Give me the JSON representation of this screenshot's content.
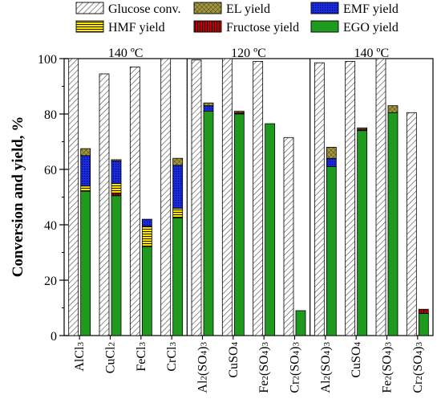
{
  "chart_data": {
    "type": "bar",
    "ylabel": "Conversion and yield, %",
    "ylim": [
      0,
      100
    ],
    "yticks": [
      0,
      20,
      40,
      60,
      80,
      100
    ],
    "legend": {
      "placement": "top",
      "items": [
        {
          "key": "conv",
          "label": "Glucose conv."
        },
        {
          "key": "el",
          "label": "EL yield"
        },
        {
          "key": "emf",
          "label": "EMF yield"
        },
        {
          "key": "hmf",
          "label": "HMF yield"
        },
        {
          "key": "fru",
          "label": "Fructose yield"
        },
        {
          "key": "ego",
          "label": "EGO yield"
        }
      ]
    },
    "series_colors": {
      "conv": "#ffffff",
      "el": "#a39840",
      "emf": "#1a2cd8",
      "hmf": "#ffe600",
      "fru": "#c00000",
      "ego": "#1f9a1f"
    },
    "panels": [
      {
        "title": "140 ºC",
        "categories": [
          {
            "label": "AlCl3",
            "base": "AlCl",
            "sub": "3",
            "sub2": "",
            "conv": 100,
            "ego": 52,
            "fru": 0,
            "hmf": 2,
            "emf": 11,
            "el": 2.5
          },
          {
            "label": "CuCl2",
            "base": "CuCl",
            "sub": "2",
            "sub2": "",
            "conv": 94.5,
            "ego": 50.5,
            "fru": 1,
            "hmf": 3.5,
            "emf": 8,
            "el": 0.5
          },
          {
            "label": "FeCl3",
            "base": "FeCl",
            "sub": "3",
            "sub2": "",
            "conv": 97,
            "ego": 32,
            "fru": 0,
            "hmf": 7.5,
            "emf": 2.5,
            "el": 0
          },
          {
            "label": "CrCl3",
            "base": "CrCl",
            "sub": "3",
            "sub2": "",
            "conv": 100,
            "ego": 42.5,
            "fru": 0,
            "hmf": 3.5,
            "emf": 15.5,
            "el": 2.5
          }
        ]
      },
      {
        "title": "120 ºC",
        "categories": [
          {
            "label": "Al2(SO4)3",
            "base": "Al",
            "sub": "2",
            "sub2": "3",
            "conv": 99.5,
            "ego": 81,
            "fru": 0,
            "hmf": 0,
            "emf": 2,
            "el": 1
          },
          {
            "label": "CuSO4",
            "base": "CuSO",
            "sub": "4",
            "sub2": "",
            "conv": 100,
            "ego": 80,
            "fru": 0.5,
            "hmf": 0,
            "emf": 0,
            "el": 0.5
          },
          {
            "label": "Fe2(SO4)3",
            "base": "Fe",
            "sub": "2",
            "sub2": "3",
            "conv": 99,
            "ego": 76.5,
            "fru": 0,
            "hmf": 0,
            "emf": 0,
            "el": 0
          },
          {
            "label": "Cr2(SO4)3",
            "base": "Cr",
            "sub": "2",
            "sub2": "3",
            "conv": 71.5,
            "ego": 9,
            "fru": 0,
            "hmf": 0,
            "emf": 0,
            "el": 0
          }
        ]
      },
      {
        "title": "140 ºC",
        "categories": [
          {
            "label": "Al2(SO4)3",
            "base": "Al",
            "sub": "2",
            "sub2": "3",
            "conv": 98.5,
            "ego": 61,
            "fru": 0,
            "hmf": 0,
            "emf": 3,
            "el": 4
          },
          {
            "label": "CuSO4",
            "base": "CuSO",
            "sub": "4",
            "sub2": "",
            "conv": 99,
            "ego": 74,
            "fru": 0.5,
            "hmf": 0,
            "emf": 0,
            "el": 0.5
          },
          {
            "label": "Fe2(SO4)3",
            "base": "Fe",
            "sub": "2",
            "sub2": "3",
            "conv": 100,
            "ego": 80.5,
            "fru": 0,
            "hmf": 0,
            "emf": 0,
            "el": 2.5
          },
          {
            "label": "Cr2(SO4)3",
            "base": "Cr",
            "sub": "2",
            "sub2": "3",
            "conv": 80.5,
            "ego": 8,
            "fru": 1.5,
            "hmf": 0,
            "emf": 0,
            "el": 0
          }
        ]
      }
    ]
  }
}
